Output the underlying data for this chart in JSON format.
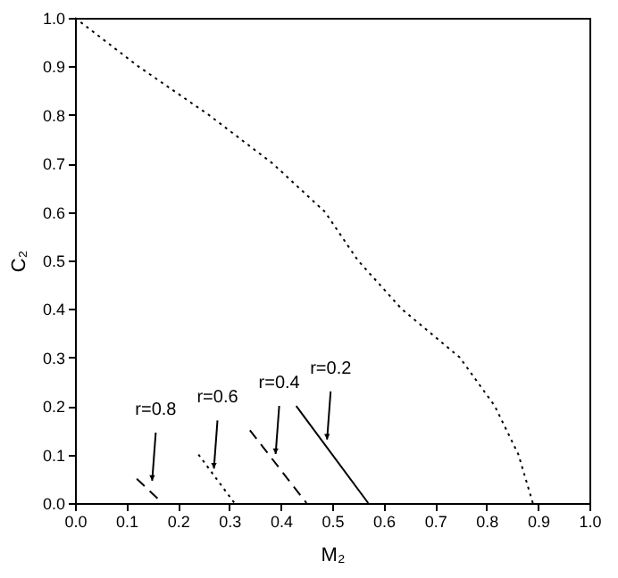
{
  "chart_data": {
    "type": "line",
    "xlabel": "M₂",
    "ylabel": "C₂",
    "xlim": [
      0,
      1
    ],
    "ylim": [
      0,
      1
    ],
    "xticks": [
      {
        "value": 0,
        "label": "0.0"
      },
      0.1,
      0.2,
      0.3,
      0.4,
      0.5,
      0.6,
      0.7,
      0.8,
      0.9,
      {
        "value": 1,
        "label": "1.0"
      }
    ],
    "yticks": [
      {
        "value": 0,
        "label": "0.0"
      },
      0.1,
      0.2,
      0.3,
      0.4,
      0.5,
      0.6,
      0.7,
      0.8,
      0.9,
      {
        "value": 1,
        "label": "1.0"
      }
    ],
    "marker": "none",
    "series": [
      {
        "color": "#000000",
        "line_style": "dotted",
        "x": [
          0,
          0.123,
          0.26,
          0.384,
          0.486,
          0.55,
          0.635,
          0.748,
          0.816,
          0.862,
          0.89
        ],
        "values": [
          1,
          0.9,
          0.8,
          0.7,
          0.6,
          0.5,
          0.4,
          0.3,
          0.2,
          0.1,
          0
        ]
      },
      {
        "color": "#000000",
        "line_style": "solid",
        "x": [
          0.43,
          0.57
        ],
        "values": [
          0.2,
          0
        ]
      },
      {
        "color": "#000000",
        "line_style": "dashed",
        "x": [
          0.34,
          0.45
        ],
        "values": [
          0.15,
          0
        ]
      },
      {
        "color": "#000000",
        "line_style": "dotted",
        "x": [
          0.24,
          0.31
        ],
        "values": [
          0.1,
          0
        ]
      },
      {
        "color": "#000000",
        "line_style": "dashed",
        "x": [
          0.12,
          0.17
        ],
        "values": [
          0.05,
          0
        ]
      }
    ],
    "annotations": [
      {
        "text": "r=0.2",
        "x": 0.49,
        "y": 0.12
      },
      {
        "text": "r=0.4",
        "x": 0.39,
        "y": 0.09
      },
      {
        "text": "r=0.6",
        "x": 0.27,
        "y": 0.06
      },
      {
        "text": "r=0.8",
        "x": 0.15,
        "y": 0.035
      }
    ]
  }
}
